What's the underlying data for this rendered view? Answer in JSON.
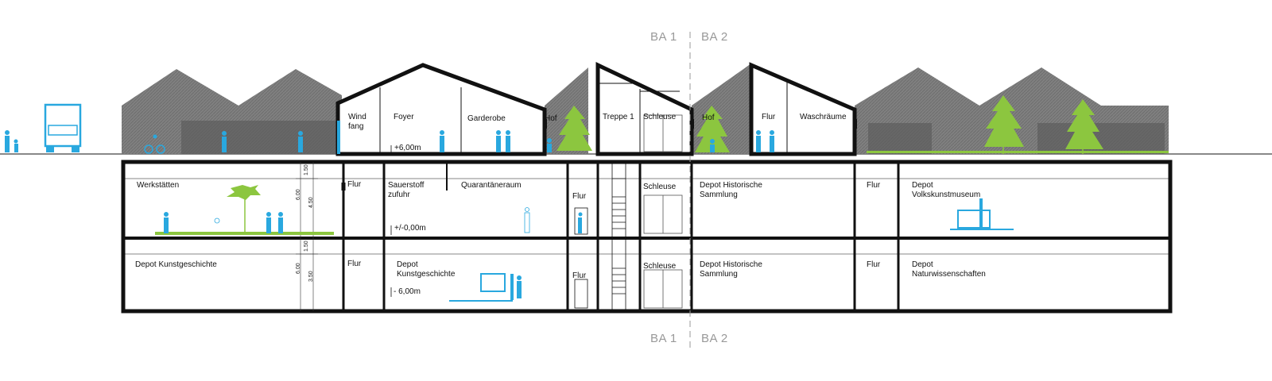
{
  "phases": {
    "left": "BA 1",
    "right": "BA 2"
  },
  "rooms": {
    "ground": {
      "windfang": "Wind\nfang",
      "foyer": "Foyer",
      "garderobe": "Garderobe",
      "hof_left": "Hof",
      "treppe": "Treppe 1",
      "schleuse": "Schleuse",
      "hof_right": "Hof",
      "flur": "Flur",
      "waschraeume": "Waschräume"
    },
    "basement1": {
      "werkstaetten": "Werkstätten",
      "flur_a": "Flur",
      "sauerstoff": "Sauerstoff\nzufuhr",
      "quarantaene": "Quarantäneraum",
      "flur_b": "Flur",
      "schleuse": "Schleuse",
      "depot_historisch": "Depot Historische\nSammlung",
      "flur_c": "Flur",
      "depot_volkskunst": "Depot\nVolkskunstmuseum"
    },
    "basement2": {
      "depot_kunstgeschichte_left": "Depot Kunstgeschichte",
      "flur_a": "Flur",
      "depot_kunstgeschichte": "Depot\nKunstgeschichte",
      "flur_b": "Flur",
      "schleuse": "Schleuse",
      "depot_historisch": "Depot Historische\nSammlung",
      "flur_c": "Flur",
      "depot_naturwissenschaften": "Depot\nNaturwissenschaften"
    }
  },
  "levels": {
    "upper": "+6,00m",
    "ground": "+/-0,00m",
    "lower": "- 6,00m"
  },
  "dimensions": {
    "b1_top": "1.50",
    "b1_total": "6.00",
    "b1_room": "4.50",
    "b2_top": "1.50",
    "b2_total": "6.00",
    "b2_room": "3.50"
  },
  "colors": {
    "structure": "#111111",
    "roof_fill": "#7a7a7a",
    "figures": "#29a8df",
    "trees": "#8cc63f",
    "phase_label": "#999999"
  }
}
